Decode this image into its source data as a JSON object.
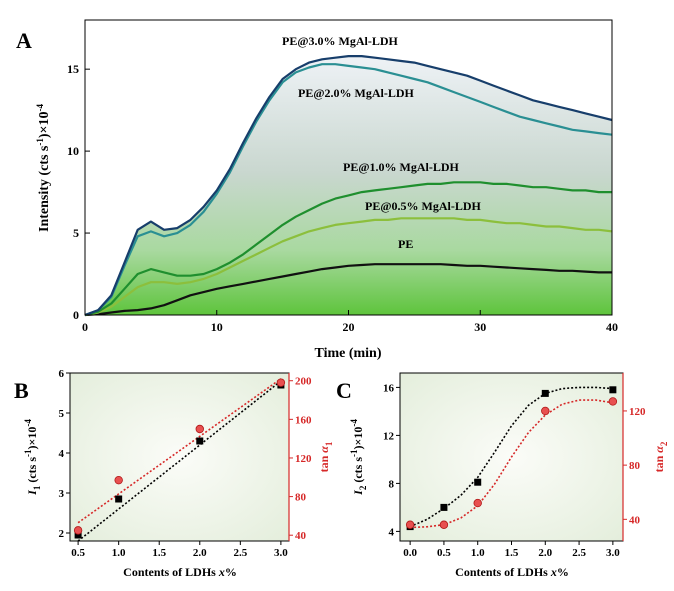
{
  "chart_data": [
    {
      "panel": "A",
      "type": "area",
      "xlabel": "Time (min)",
      "ylabel_parts": [
        "Intensity (cts s",
        "-1",
        ")×10",
        "-4"
      ],
      "xlim": [
        0,
        40
      ],
      "ylim": [
        0,
        18
      ],
      "xticks": [
        "0",
        "10",
        "20",
        "30",
        "40"
      ],
      "yticks": [
        "0",
        "5",
        "10",
        "15"
      ],
      "series": [
        {
          "name": "PE@3.0% MgAl-LDH",
          "color": "#173e6b",
          "x": [
            0,
            1,
            2,
            3,
            4,
            5,
            6,
            7,
            8,
            9,
            10,
            11,
            12,
            13,
            14,
            15,
            16,
            17,
            18,
            19,
            20,
            21,
            22,
            23,
            24,
            25,
            26,
            27,
            28,
            29,
            30,
            31,
            32,
            33,
            34,
            35,
            36,
            37,
            38,
            39,
            40
          ],
          "y": [
            0,
            0.3,
            1.2,
            3.2,
            5.2,
            5.7,
            5.2,
            5.3,
            5.8,
            6.6,
            7.6,
            8.9,
            10.5,
            12.0,
            13.3,
            14.4,
            15.0,
            15.4,
            15.6,
            15.7,
            15.8,
            15.8,
            15.7,
            15.6,
            15.5,
            15.4,
            15.2,
            15.0,
            14.8,
            14.6,
            14.3,
            14.0,
            13.7,
            13.4,
            13.1,
            12.9,
            12.7,
            12.5,
            12.3,
            12.1,
            11.9
          ]
        },
        {
          "name": "PE@2.0% MgAl-LDH",
          "color": "#2a8f93",
          "x": [
            0,
            1,
            2,
            3,
            4,
            5,
            6,
            7,
            8,
            9,
            10,
            11,
            12,
            13,
            14,
            15,
            16,
            17,
            18,
            19,
            20,
            21,
            22,
            23,
            24,
            25,
            26,
            27,
            28,
            29,
            30,
            31,
            32,
            33,
            34,
            35,
            36,
            37,
            38,
            39,
            40
          ],
          "y": [
            0,
            0.3,
            1.1,
            3.0,
            4.8,
            5.1,
            4.8,
            5.0,
            5.5,
            6.3,
            7.4,
            8.7,
            10.3,
            11.8,
            13.1,
            14.2,
            14.8,
            15.1,
            15.3,
            15.3,
            15.2,
            15.1,
            15.0,
            14.8,
            14.6,
            14.4,
            14.2,
            13.9,
            13.6,
            13.3,
            13.0,
            12.7,
            12.4,
            12.1,
            11.9,
            11.7,
            11.5,
            11.3,
            11.2,
            11.1,
            11.0
          ]
        },
        {
          "name": "PE@1.0% MgAl-LDH",
          "color": "#1f8f2e",
          "x": [
            0,
            1,
            2,
            3,
            4,
            5,
            6,
            7,
            8,
            9,
            10,
            11,
            12,
            13,
            14,
            15,
            16,
            17,
            18,
            19,
            20,
            21,
            22,
            23,
            24,
            25,
            26,
            27,
            28,
            29,
            30,
            31,
            32,
            33,
            34,
            35,
            36,
            37,
            38,
            39,
            40
          ],
          "y": [
            0,
            0.2,
            0.7,
            1.6,
            2.5,
            2.8,
            2.6,
            2.4,
            2.4,
            2.5,
            2.8,
            3.2,
            3.7,
            4.3,
            4.9,
            5.5,
            6.0,
            6.4,
            6.8,
            7.1,
            7.3,
            7.5,
            7.6,
            7.7,
            7.8,
            7.9,
            8.0,
            8.0,
            8.1,
            8.1,
            8.1,
            8.0,
            8.0,
            7.9,
            7.8,
            7.8,
            7.7,
            7.6,
            7.6,
            7.5,
            7.5
          ]
        },
        {
          "name": "PE@0.5% MgAl-LDH",
          "color": "#8cbf3c",
          "x": [
            0,
            1,
            2,
            3,
            4,
            5,
            6,
            7,
            8,
            9,
            10,
            11,
            12,
            13,
            14,
            15,
            16,
            17,
            18,
            19,
            20,
            21,
            22,
            23,
            24,
            25,
            26,
            27,
            28,
            29,
            30,
            31,
            32,
            33,
            34,
            35,
            36,
            37,
            38,
            39,
            40
          ],
          "y": [
            0,
            0.15,
            0.5,
            1.1,
            1.7,
            2.0,
            2.0,
            1.9,
            2.0,
            2.2,
            2.5,
            2.9,
            3.3,
            3.7,
            4.1,
            4.5,
            4.8,
            5.1,
            5.3,
            5.5,
            5.6,
            5.7,
            5.8,
            5.8,
            5.9,
            5.9,
            5.9,
            5.9,
            5.9,
            5.8,
            5.8,
            5.7,
            5.6,
            5.6,
            5.5,
            5.4,
            5.4,
            5.3,
            5.2,
            5.2,
            5.1
          ]
        },
        {
          "name": "PE",
          "color": "#111111",
          "x": [
            0,
            1,
            2,
            3,
            4,
            5,
            6,
            7,
            8,
            9,
            10,
            11,
            12,
            13,
            14,
            15,
            16,
            17,
            18,
            19,
            20,
            21,
            22,
            23,
            24,
            25,
            26,
            27,
            28,
            29,
            30,
            31,
            32,
            33,
            34,
            35,
            36,
            37,
            38,
            39,
            40
          ],
          "y": [
            0,
            0.05,
            0.15,
            0.25,
            0.3,
            0.4,
            0.6,
            0.9,
            1.2,
            1.4,
            1.6,
            1.75,
            1.9,
            2.05,
            2.2,
            2.35,
            2.5,
            2.65,
            2.8,
            2.9,
            3.0,
            3.05,
            3.1,
            3.1,
            3.1,
            3.1,
            3.1,
            3.1,
            3.05,
            3.0,
            3.0,
            2.95,
            2.9,
            2.85,
            2.8,
            2.75,
            2.7,
            2.7,
            2.65,
            2.6,
            2.6
          ]
        }
      ]
    },
    {
      "panel": "B",
      "type": "scatter",
      "xlabel": "Contents of LDHs ",
      "xlabel_italic": "x",
      "xlabel_suffix": "%",
      "ylabel_parts": [
        "I",
        "1",
        " (cts s",
        "-1",
        ")×10",
        "-4"
      ],
      "ylabel_right": "tan ",
      "ylabel_right_italic": "α",
      "ylabel_right_sub": "1",
      "xlim": [
        0.4,
        3.1
      ],
      "ylim": [
        1.8,
        6.0
      ],
      "ylim_right": [
        34,
        208
      ],
      "xticks": [
        "0.5",
        "1.0",
        "1.5",
        "2.0",
        "2.5",
        "3.0"
      ],
      "yticks": [
        "2",
        "3",
        "4",
        "5",
        "6"
      ],
      "yticks_right": [
        "40",
        "80",
        "120",
        "160",
        "200"
      ],
      "series": [
        {
          "name": "I1",
          "color": "#000000",
          "marker": "square",
          "x": [
            0.5,
            1.0,
            2.0,
            3.0
          ],
          "y": [
            1.95,
            2.85,
            4.3,
            5.7
          ],
          "fit": [
            [
              0.5,
              1.8
            ],
            [
              3.0,
              5.8
            ]
          ]
        },
        {
          "name": "tan a1",
          "color": "#d62828",
          "marker": "circle",
          "axis": "right",
          "x": [
            0.5,
            1.0,
            2.0,
            3.0
          ],
          "y": [
            45,
            97,
            150,
            198
          ],
          "fit": [
            [
              0.5,
              53
            ],
            [
              3.0,
              202
            ]
          ]
        }
      ]
    },
    {
      "panel": "C",
      "type": "scatter",
      "xlabel": "Contents of LDHs ",
      "xlabel_italic": "x",
      "xlabel_suffix": "%",
      "ylabel_parts": [
        "I",
        "2",
        " (cts s",
        "-1",
        ")×10",
        "-4"
      ],
      "ylabel_right": "tan ",
      "ylabel_right_italic": "α",
      "ylabel_right_sub": "2",
      "xlim": [
        -0.15,
        3.15
      ],
      "ylim": [
        3.2,
        17.2
      ],
      "ylim_right": [
        24,
        148
      ],
      "xticks": [
        "0.0",
        "0.5",
        "1.0",
        "1.5",
        "2.0",
        "2.5",
        "3.0"
      ],
      "yticks": [
        "4",
        "8",
        "12",
        "16"
      ],
      "yticks_right": [
        "40",
        "80",
        "120"
      ],
      "series": [
        {
          "name": "I2",
          "color": "#000000",
          "marker": "square",
          "x": [
            0.0,
            0.5,
            1.0,
            2.0,
            3.0
          ],
          "y": [
            4.4,
            6.0,
            8.1,
            15.5,
            15.8
          ],
          "fit_x": [
            0,
            0.25,
            0.5,
            0.75,
            1,
            1.25,
            1.5,
            1.75,
            2,
            2.25,
            2.5,
            2.75,
            3
          ],
          "fit_y": [
            4.4,
            5.0,
            5.9,
            7.0,
            8.5,
            10.6,
            12.8,
            14.5,
            15.5,
            15.9,
            16.0,
            16.0,
            15.9
          ]
        },
        {
          "name": "tan a2",
          "color": "#d62828",
          "marker": "circle",
          "axis": "right",
          "x": [
            0.0,
            0.5,
            1.0,
            2.0,
            3.0
          ],
          "y": [
            36,
            36,
            52,
            120,
            127
          ],
          "fit_x": [
            0,
            0.25,
            0.5,
            0.75,
            1,
            1.25,
            1.5,
            1.75,
            2,
            2.25,
            2.5,
            2.75,
            3
          ],
          "fit_y": [
            34,
            34.5,
            36,
            41,
            50,
            66,
            86,
            104,
            117,
            125,
            128,
            128,
            126
          ]
        }
      ]
    }
  ]
}
